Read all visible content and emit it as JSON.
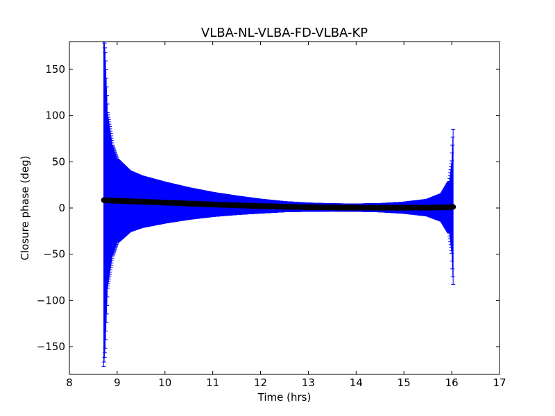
{
  "chart_data": {
    "type": "scatter",
    "title": "VLBA-NL-VLBA-FD-VLBA-KP",
    "xlabel": "Time (hrs)",
    "ylabel": "Closure phase (deg)",
    "xlim": [
      8,
      17
    ],
    "ylim": [
      -180,
      180
    ],
    "xticks": [
      8,
      9,
      10,
      11,
      12,
      13,
      14,
      15,
      16,
      17
    ],
    "yticks": [
      -150,
      -100,
      -50,
      0,
      50,
      100,
      150
    ],
    "xtick_labels": [
      "8",
      "9",
      "10",
      "11",
      "12",
      "13",
      "14",
      "15",
      "16",
      "17"
    ],
    "ytick_labels": [
      "−150",
      "−100",
      "−50",
      "0",
      "50",
      "100",
      "150"
    ],
    "grid": false,
    "colors": {
      "points": "#000000",
      "errorbars": "#0000ff"
    },
    "series": [
      {
        "x": [
          8.72,
          8.75,
          8.8,
          8.9,
          9.0,
          9.25,
          9.5,
          10.0,
          10.5,
          11.0,
          11.5,
          12.0,
          12.5,
          13.0,
          13.5,
          14.0,
          14.5,
          15.0,
          15.5,
          15.8,
          15.95,
          16.0,
          16.03
        ],
        "y": [
          8.5,
          8.3,
          8.2,
          8.0,
          7.8,
          7.3,
          6.8,
          5.8,
          4.8,
          3.8,
          2.9,
          2.0,
          1.4,
          0.9,
          0.6,
          0.4,
          0.3,
          0.3,
          0.4,
          0.6,
          0.8,
          1.0,
          1.2
        ],
        "yerr": [
          180,
          160,
          95,
          60,
          45,
          33,
          28,
          22,
          17,
          13,
          10,
          7.5,
          5.5,
          4.5,
          4.0,
          4.0,
          4.5,
          6.0,
          9.0,
          15.0,
          28.0,
          50.0,
          84.0
        ]
      }
    ]
  }
}
